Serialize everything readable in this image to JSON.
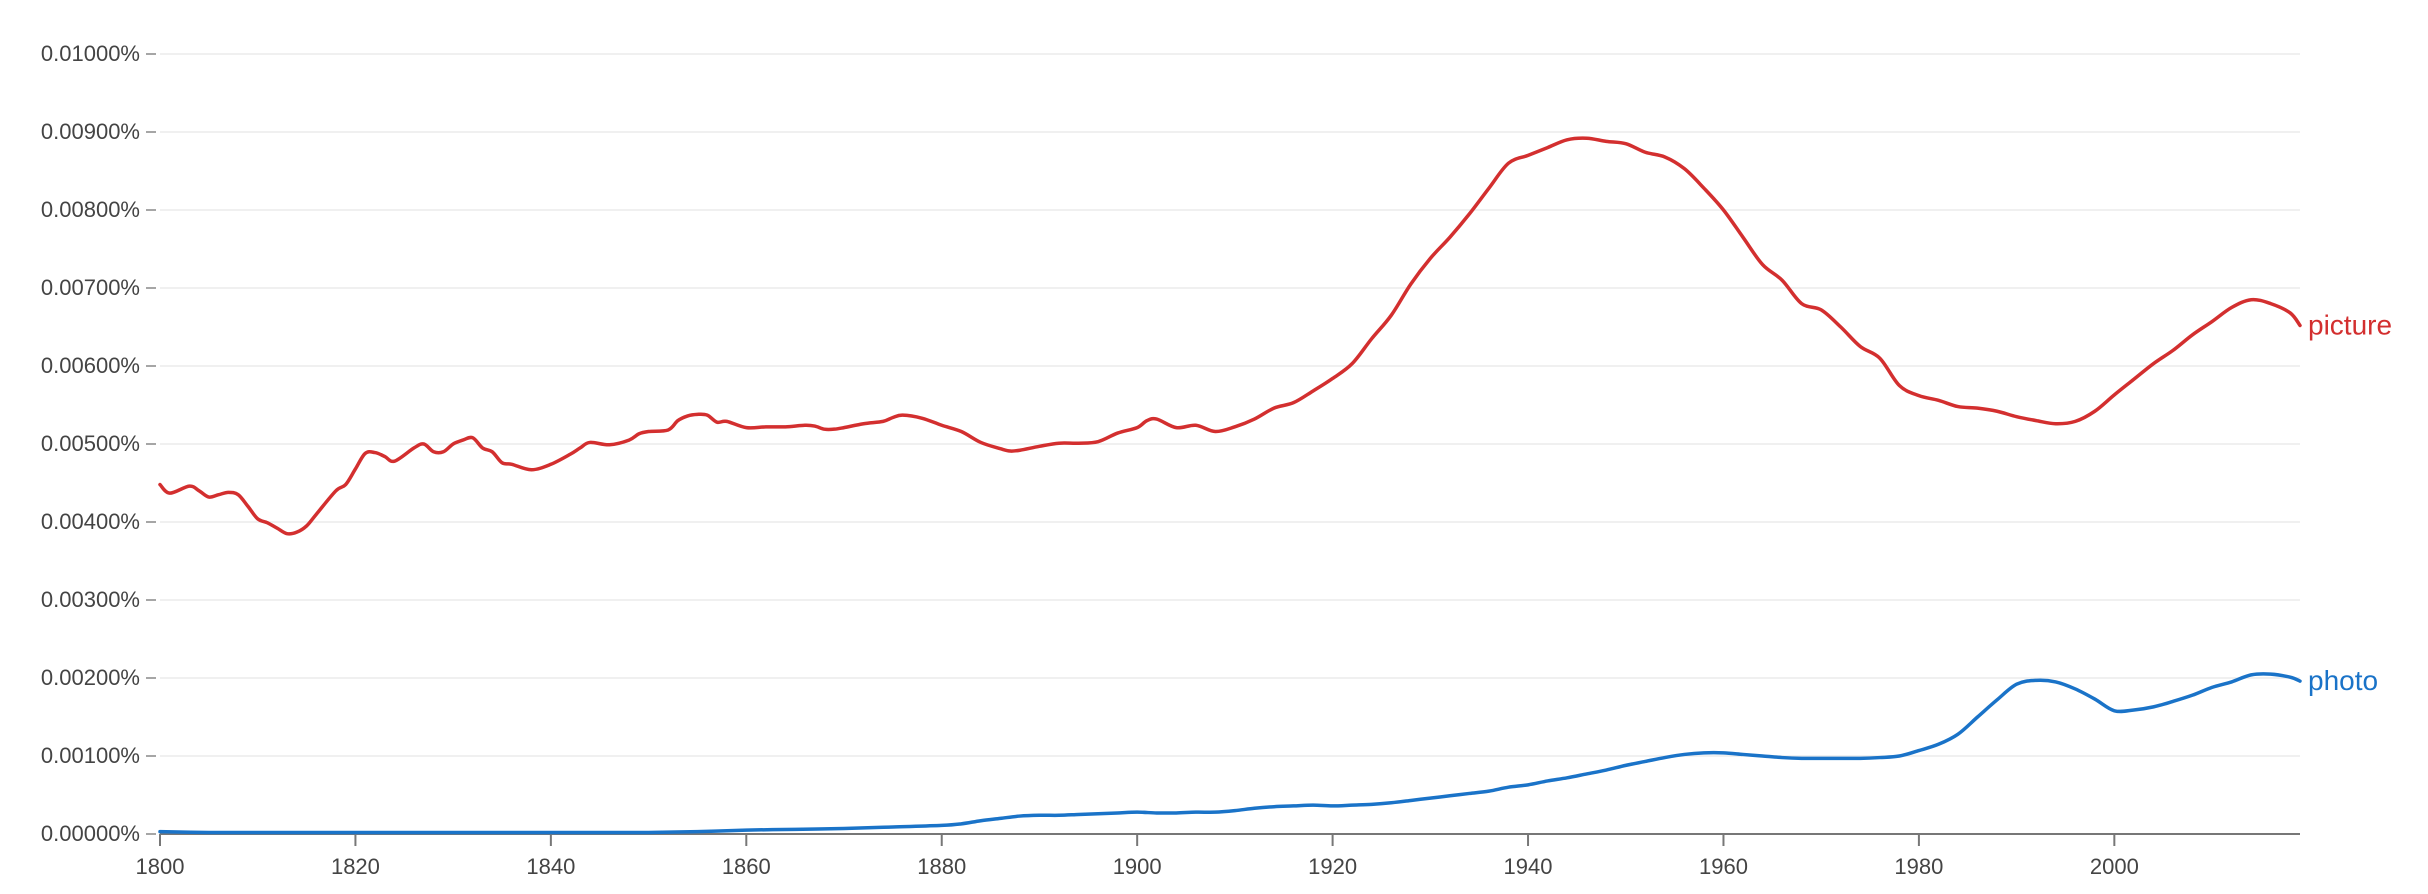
{
  "chart_data": {
    "type": "line",
    "title": "",
    "xlabel": "",
    "ylabel": "",
    "xlim": [
      1800,
      2019
    ],
    "ylim": [
      0,
      0.01
    ],
    "grid": true,
    "legend": "inline-right",
    "yticks": [
      {
        "value": 0.0,
        "label": "0.00000%"
      },
      {
        "value": 0.001,
        "label": "0.00100%"
      },
      {
        "value": 0.002,
        "label": "0.00200%"
      },
      {
        "value": 0.003,
        "label": "0.00300%"
      },
      {
        "value": 0.004,
        "label": "0.00400%"
      },
      {
        "value": 0.005,
        "label": "0.00500%"
      },
      {
        "value": 0.006,
        "label": "0.00600%"
      },
      {
        "value": 0.007,
        "label": "0.00700%"
      },
      {
        "value": 0.008,
        "label": "0.00800%"
      },
      {
        "value": 0.009,
        "label": "0.00900%"
      },
      {
        "value": 0.01,
        "label": "0.01000%"
      }
    ],
    "xticks": [
      {
        "value": 1800,
        "label": "1800"
      },
      {
        "value": 1820,
        "label": "1820"
      },
      {
        "value": 1840,
        "label": "1840"
      },
      {
        "value": 1860,
        "label": "1860"
      },
      {
        "value": 1880,
        "label": "1880"
      },
      {
        "value": 1900,
        "label": "1900"
      },
      {
        "value": 1920,
        "label": "1920"
      },
      {
        "value": 1940,
        "label": "1940"
      },
      {
        "value": 1960,
        "label": "1960"
      },
      {
        "value": 1980,
        "label": "1980"
      },
      {
        "value": 2000,
        "label": "2000"
      }
    ],
    "series": [
      {
        "name": "picture",
        "color": "#d32f2f",
        "x": [
          1800,
          1801,
          1803,
          1804,
          1805,
          1806,
          1807,
          1808,
          1809,
          1810,
          1811,
          1812,
          1813,
          1814,
          1815,
          1816,
          1818,
          1819,
          1820,
          1821,
          1822,
          1823,
          1824,
          1826,
          1827,
          1828,
          1829,
          1830,
          1831,
          1832,
          1833,
          1834,
          1835,
          1836,
          1838,
          1840,
          1842,
          1843,
          1844,
          1846,
          1848,
          1849,
          1850,
          1852,
          1853,
          1854,
          1855,
          1856,
          1857,
          1858,
          1860,
          1862,
          1864,
          1866,
          1867,
          1868,
          1869,
          1870,
          1872,
          1874,
          1875,
          1876,
          1878,
          1880,
          1882,
          1884,
          1886,
          1887,
          1888,
          1890,
          1892,
          1894,
          1896,
          1898,
          1900,
          1901,
          1902,
          1904,
          1906,
          1908,
          1910,
          1912,
          1914,
          1916,
          1918,
          1920,
          1922,
          1924,
          1926,
          1928,
          1930,
          1932,
          1934,
          1936,
          1938,
          1940,
          1942,
          1944,
          1946,
          1948,
          1950,
          1952,
          1954,
          1956,
          1958,
          1960,
          1962,
          1964,
          1966,
          1968,
          1970,
          1972,
          1974,
          1976,
          1978,
          1980,
          1982,
          1984,
          1986,
          1988,
          1990,
          1992,
          1994,
          1996,
          1998,
          2000,
          2002,
          2004,
          2006,
          2008,
          2010,
          2012,
          2014,
          2016,
          2018,
          2019
        ],
        "y": [
          0.00448,
          0.00437,
          0.00446,
          0.0044,
          0.00432,
          0.00435,
          0.00438,
          0.00435,
          0.0042,
          0.00404,
          0.00399,
          0.00392,
          0.00385,
          0.00387,
          0.00395,
          0.0041,
          0.0044,
          0.00448,
          0.00468,
          0.00488,
          0.00489,
          0.00484,
          0.00478,
          0.00495,
          0.005,
          0.0049,
          0.0049,
          0.005,
          0.00505,
          0.00508,
          0.00495,
          0.0049,
          0.00476,
          0.00474,
          0.00467,
          0.00474,
          0.00487,
          0.00495,
          0.00502,
          0.00499,
          0.00505,
          0.00513,
          0.00516,
          0.00518,
          0.0053,
          0.00536,
          0.00538,
          0.00537,
          0.00528,
          0.00529,
          0.00521,
          0.00522,
          0.00522,
          0.00524,
          0.00523,
          0.00519,
          0.00519,
          0.00521,
          0.00526,
          0.00529,
          0.00534,
          0.00537,
          0.00533,
          0.00524,
          0.00516,
          0.00502,
          0.00494,
          0.00491,
          0.00492,
          0.00497,
          0.00501,
          0.00501,
          0.00503,
          0.00514,
          0.00521,
          0.0053,
          0.00532,
          0.00521,
          0.00524,
          0.00516,
          0.00522,
          0.00532,
          0.00546,
          0.00553,
          0.00568,
          0.00584,
          0.00603,
          0.00635,
          0.00665,
          0.00705,
          0.00738,
          0.00765,
          0.00795,
          0.00828,
          0.0086,
          0.0087,
          0.0088,
          0.0089,
          0.00892,
          0.00888,
          0.00885,
          0.00874,
          0.00868,
          0.00853,
          0.00828,
          0.008,
          0.00765,
          0.0073,
          0.0071,
          0.0068,
          0.00672,
          0.0065,
          0.00625,
          0.0061,
          0.00575,
          0.00562,
          0.00556,
          0.00548,
          0.00546,
          0.00542,
          0.00535,
          0.0053,
          0.00526,
          0.00529,
          0.00542,
          0.00563,
          0.00583,
          0.00603,
          0.0062,
          0.0064,
          0.00657,
          0.00675,
          0.00685,
          0.0068,
          0.00668,
          0.00652
        ]
      },
      {
        "name": "photo",
        "color": "#1a73c8",
        "x": [
          1800,
          1805,
          1810,
          1815,
          1820,
          1825,
          1830,
          1835,
          1840,
          1845,
          1850,
          1855,
          1860,
          1865,
          1870,
          1875,
          1880,
          1882,
          1884,
          1886,
          1888,
          1890,
          1892,
          1894,
          1896,
          1898,
          1900,
          1902,
          1904,
          1906,
          1908,
          1910,
          1912,
          1914,
          1916,
          1918,
          1920,
          1922,
          1924,
          1926,
          1928,
          1930,
          1932,
          1934,
          1936,
          1938,
          1940,
          1942,
          1944,
          1946,
          1948,
          1950,
          1952,
          1954,
          1956,
          1958,
          1960,
          1962,
          1964,
          1966,
          1968,
          1970,
          1972,
          1974,
          1976,
          1978,
          1980,
          1982,
          1984,
          1986,
          1988,
          1990,
          1992,
          1994,
          1996,
          1998,
          2000,
          2002,
          2004,
          2006,
          2008,
          2010,
          2012,
          2014,
          2016,
          2018,
          2019
        ],
        "y": [
          3e-05,
          2e-05,
          2e-05,
          2e-05,
          2e-05,
          2e-05,
          2e-05,
          2e-05,
          2e-05,
          2e-05,
          2e-05,
          3e-05,
          5e-05,
          6e-05,
          7e-05,
          9e-05,
          0.00011,
          0.00013,
          0.00017,
          0.0002,
          0.00023,
          0.00024,
          0.00024,
          0.00025,
          0.00026,
          0.00027,
          0.00028,
          0.00027,
          0.00027,
          0.00028,
          0.00028,
          0.0003,
          0.00033,
          0.00035,
          0.00036,
          0.00037,
          0.00036,
          0.00037,
          0.00038,
          0.0004,
          0.00043,
          0.00046,
          0.00049,
          0.00052,
          0.00055,
          0.0006,
          0.00063,
          0.00068,
          0.00072,
          0.00077,
          0.00082,
          0.00088,
          0.00093,
          0.00098,
          0.00102,
          0.00104,
          0.00104,
          0.00102,
          0.001,
          0.00098,
          0.00097,
          0.00097,
          0.00097,
          0.00097,
          0.00098,
          0.001,
          0.00107,
          0.00115,
          0.00128,
          0.0015,
          0.00172,
          0.00192,
          0.00197,
          0.00195,
          0.00186,
          0.00173,
          0.00158,
          0.00159,
          0.00163,
          0.0017,
          0.00178,
          0.00188,
          0.00195,
          0.00204,
          0.00205,
          0.00201,
          0.00196
        ]
      }
    ]
  }
}
